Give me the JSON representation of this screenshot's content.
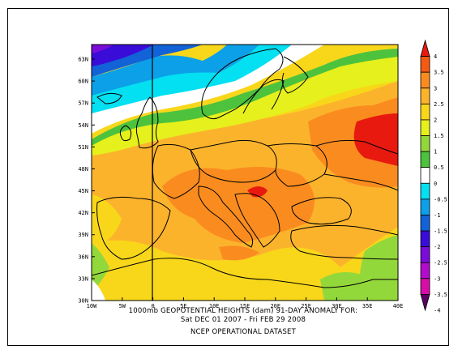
{
  "caption": {
    "line1": "1000mb GEOPOTENTIAL HEIGHTS (dam)   91-DAY ANOMALY FOR:",
    "line2": "Sat DEC 01 2007 - Fri FEB 29 2008",
    "line3": "NCEP OPERATIONAL DATASET"
  },
  "axes": {
    "lat_labels": [
      "30N",
      "33N",
      "36N",
      "39N",
      "42N",
      "45N",
      "48N",
      "51N",
      "54N",
      "57N",
      "60N",
      "63N"
    ],
    "lon_labels": [
      "10W",
      "5W",
      "0",
      "5E",
      "10E",
      "15E",
      "20E",
      "25E",
      "30E",
      "35E",
      "40E"
    ]
  },
  "colorbar": {
    "labels": [
      "4",
      "3.5",
      "3",
      "2.5",
      "2",
      "1.5",
      "1",
      "0.5",
      "0",
      "-0.5",
      "-1",
      "-1.5",
      "-2",
      "-2.5",
      "-3",
      "-3.5",
      "-4"
    ],
    "colors": [
      "#e8190e",
      "#f55a12",
      "#fa8c1f",
      "#fcb32c",
      "#f8d71b",
      "#e6f01c",
      "#93d83a",
      "#4dc23d",
      "#ffffff",
      "#03e0f2",
      "#0ca0e8",
      "#1262d8",
      "#3a0cd8",
      "#7a0cd8",
      "#b10ccc",
      "#d80ca6",
      "#5a0062"
    ],
    "range": [
      -4,
      4
    ],
    "step": 0.5
  },
  "map": {
    "domain": {
      "lon_min": -10,
      "lon_max": 40,
      "lat_min": 30,
      "lat_max": 64
    },
    "anomaly_features": [
      {
        "name": "max-east-russia",
        "value": 4
      },
      {
        "name": "max-balkans",
        "value": 4
      },
      {
        "name": "min-greenland-sea",
        "value": -2.5
      }
    ]
  }
}
